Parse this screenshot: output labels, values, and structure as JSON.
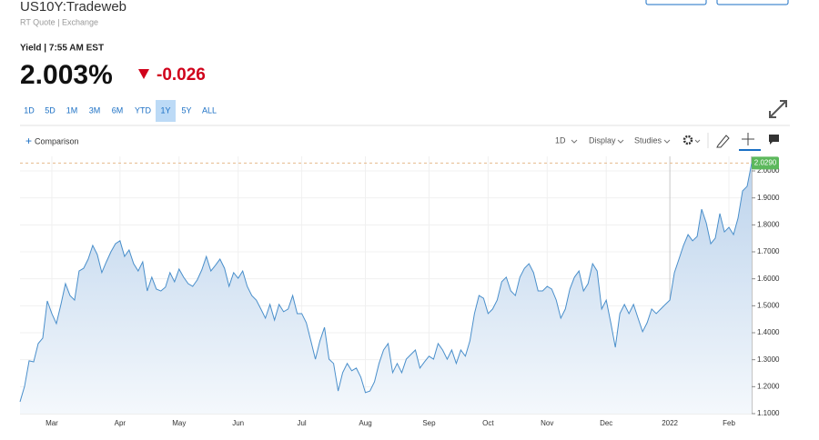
{
  "header": {
    "title": "US10Y:Tradeweb",
    "subtitle": "RT Quote | Exchange",
    "quote_time": "Yield | 7:55 AM EST",
    "price": "2.003%",
    "change": "-0.026"
  },
  "range_buttons": [
    "1D",
    "5D",
    "1M",
    "3M",
    "6M",
    "YTD",
    "1Y",
    "5Y",
    "ALL"
  ],
  "toolbar": {
    "comparison": "Comparison",
    "interval": "1D",
    "display": "Display",
    "studies": "Studies"
  },
  "chart_data": {
    "type": "area",
    "categories": [
      null,
      null,
      null,
      null,
      null,
      null,
      null,
      "Mar",
      null,
      null,
      null,
      null,
      null,
      null,
      null,
      null,
      null,
      null,
      null,
      null,
      null,
      null,
      "Apr",
      null,
      null,
      null,
      null,
      null,
      null,
      null,
      null,
      null,
      null,
      null,
      null,
      "May",
      null,
      null,
      null,
      null,
      null,
      null,
      null,
      null,
      null,
      null,
      null,
      null,
      "Jun",
      null,
      null,
      null,
      null,
      null,
      null,
      null,
      null,
      null,
      null,
      null,
      null,
      null,
      "Jul",
      null,
      null,
      null,
      null,
      null,
      null,
      null,
      null,
      null,
      null,
      null,
      null,
      null,
      "Aug",
      null,
      null,
      null,
      null,
      null,
      null,
      null,
      null,
      null,
      null,
      null,
      null,
      null,
      "Sep",
      null,
      null,
      null,
      null,
      null,
      null,
      null,
      null,
      null,
      null,
      null,
      null,
      "Oct",
      null,
      null,
      null,
      null,
      null,
      null,
      null,
      null,
      null,
      null,
      null,
      null,
      "Nov",
      null,
      null,
      null,
      null,
      null,
      null,
      null,
      null,
      null,
      null,
      null,
      null,
      "Dec",
      null,
      null,
      null,
      null,
      null,
      null,
      null,
      null,
      null,
      null,
      null,
      null,
      null,
      "2022",
      null,
      null,
      null,
      null,
      null,
      null,
      null,
      null,
      null,
      null,
      null,
      null,
      "Feb",
      null,
      null,
      null,
      null,
      null
    ],
    "series": [
      {
        "color": "#4a8fcb",
        "values": [
          1.144,
          1.201,
          1.296,
          1.292,
          1.36,
          1.38,
          1.518,
          1.471,
          1.434,
          1.505,
          1.582,
          1.538,
          1.521,
          1.629,
          1.639,
          1.673,
          1.724,
          1.69,
          1.623,
          1.663,
          1.7,
          1.73,
          1.741,
          1.683,
          1.707,
          1.656,
          1.629,
          1.663,
          1.555,
          1.606,
          1.562,
          1.555,
          1.569,
          1.623,
          1.589,
          1.636,
          1.606,
          1.582,
          1.572,
          1.596,
          1.633,
          1.683,
          1.629,
          1.65,
          1.673,
          1.639,
          1.572,
          1.623,
          1.602,
          1.629,
          1.572,
          1.538,
          1.521,
          1.488,
          1.454,
          1.505,
          1.447,
          1.505,
          1.478,
          1.488,
          1.538,
          1.471,
          1.471,
          1.437,
          1.37,
          1.302,
          1.37,
          1.42,
          1.302,
          1.286,
          1.184,
          1.252,
          1.286,
          1.259,
          1.269,
          1.235,
          1.178,
          1.184,
          1.218,
          1.286,
          1.336,
          1.36,
          1.252,
          1.286,
          1.252,
          1.302,
          1.319,
          1.336,
          1.269,
          1.292,
          1.313,
          1.302,
          1.36,
          1.336,
          1.302,
          1.336,
          1.286,
          1.336,
          1.313,
          1.37,
          1.471,
          1.538,
          1.528,
          1.471,
          1.488,
          1.521,
          1.589,
          1.606,
          1.555,
          1.538,
          1.606,
          1.639,
          1.656,
          1.623,
          1.555,
          1.555,
          1.572,
          1.562,
          1.521,
          1.454,
          1.488,
          1.562,
          1.606,
          1.629,
          1.555,
          1.582,
          1.656,
          1.629,
          1.488,
          1.521,
          1.437,
          1.346,
          1.471,
          1.505,
          1.471,
          1.505,
          1.454,
          1.404,
          1.437,
          1.488,
          1.471,
          1.488,
          1.505,
          1.521,
          1.623,
          1.673,
          1.724,
          1.764,
          1.741,
          1.757,
          1.858,
          1.808,
          1.73,
          1.751,
          1.842,
          1.774,
          1.791,
          1.764,
          1.825,
          1.926,
          1.943,
          2.029
        ]
      }
    ],
    "last_value": {
      "value": 2.029,
      "label": "2.0290"
    },
    "ylim": [
      1.1,
      2.054
    ],
    "yticks": [
      {
        "value": 1.1,
        "label": "1.1000"
      },
      {
        "value": 1.2,
        "label": "1.2000"
      },
      {
        "value": 1.3,
        "label": "1.3000"
      },
      {
        "value": 1.4,
        "label": "1.4000"
      },
      {
        "value": 1.5,
        "label": "1.5000"
      },
      {
        "value": 1.6,
        "label": "1.6000"
      },
      {
        "value": 1.7,
        "label": "1.7000"
      },
      {
        "value": 1.8,
        "label": "1.8000"
      },
      {
        "value": 1.9,
        "label": "1.9000"
      },
      {
        "value": 2.0,
        "label": "2.0000"
      }
    ],
    "grid": true
  }
}
